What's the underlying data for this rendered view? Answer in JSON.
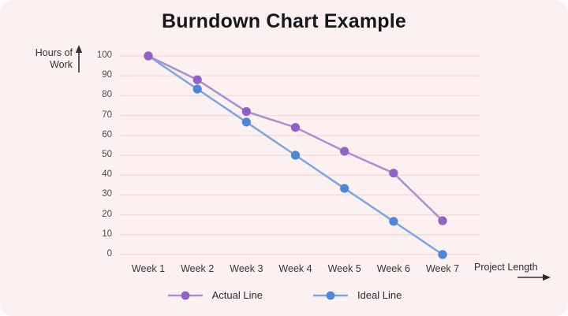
{
  "page": {
    "background": "#ffffff",
    "card_background": "#fdf0f0",
    "gridline_color": "#f3dada"
  },
  "title": "Burndown Chart Example",
  "y_axis": {
    "label_line1": "Hours of",
    "label_line2": "Work",
    "arrow": "up",
    "ticks": [
      0,
      10,
      20,
      30,
      40,
      50,
      60,
      70,
      80,
      90,
      100
    ]
  },
  "x_axis": {
    "label": "Project Length",
    "arrow": "right"
  },
  "chart_data": {
    "type": "line",
    "title": "Burndown Chart Example",
    "categories": [
      "Week 1",
      "Week 2",
      "Week 3",
      "Week 4",
      "Week 5",
      "Week 6",
      "Week 7"
    ],
    "series": [
      {
        "name": "Actual Line",
        "values": [
          100,
          88,
          72,
          64,
          52,
          41,
          17
        ],
        "line_color": "#a98fd6",
        "dot_color": "#8f62c6"
      },
      {
        "name": "Ideal Line",
        "values": [
          100,
          83.3,
          66.7,
          50,
          33.3,
          16.7,
          0
        ],
        "line_color": "#7aa6e9",
        "dot_color": "#4d86d8"
      }
    ],
    "xlabel": "Project Length",
    "ylabel": "Hours of Work",
    "ylim": [
      0,
      100
    ],
    "ytick_step": 10,
    "grid": "horizontal",
    "legend_position": "bottom"
  }
}
